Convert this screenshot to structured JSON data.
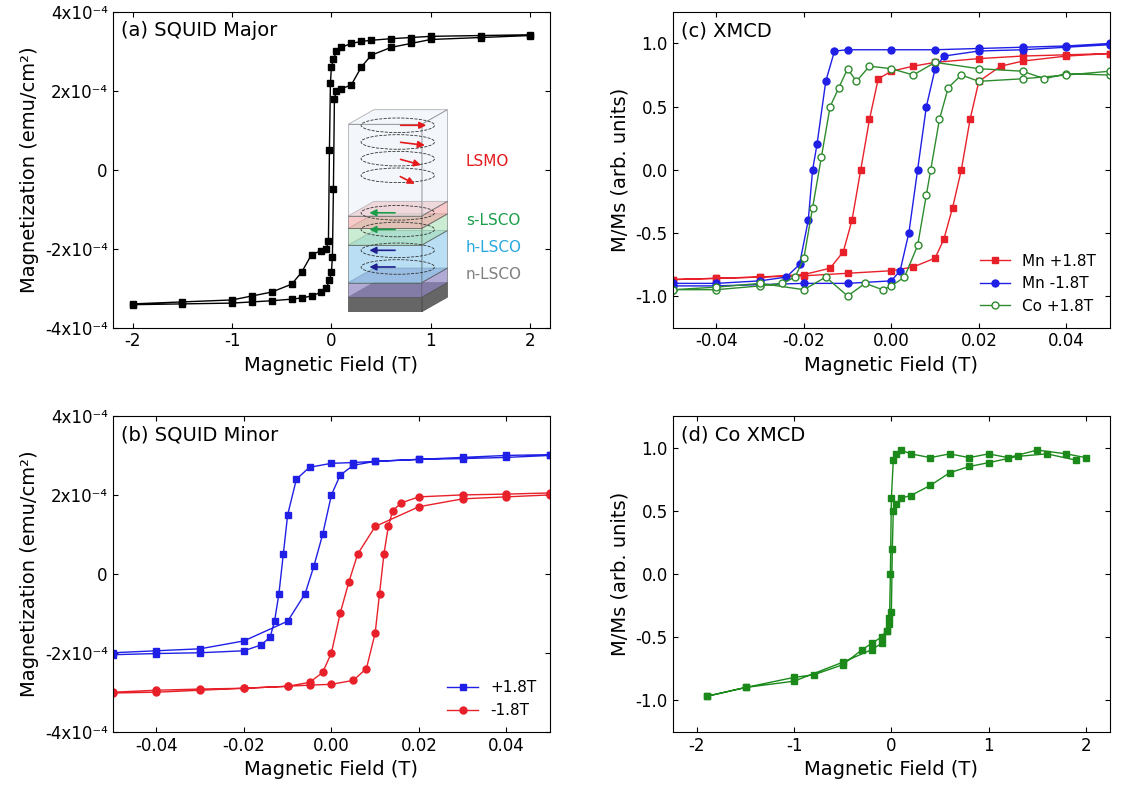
{
  "chart_data": [
    {
      "type": "line",
      "title": "(a) SQUID Major",
      "x_label": "Magnetic Field (T)",
      "y_label": "Magnetization (emu/cm²)",
      "xlim": [
        -2.2,
        2.2
      ],
      "ylim": [
        -0.0004,
        0.0004
      ],
      "xticks": [
        -2,
        -1,
        0,
        1,
        2
      ],
      "yticks": [
        {
          "value": -0.0004,
          "label": "-4x10⁻⁴"
        },
        {
          "value": -0.0002,
          "label": "-2x10⁻⁴"
        },
        0,
        {
          "value": 0.0002,
          "label": "2x10⁻⁴"
        },
        {
          "value": 0.0004,
          "label": "4x10⁻⁴"
        }
      ],
      "series": [
        {
          "color": "#000000",
          "marker": "square",
          "x": [
            2,
            1.5,
            1,
            0.8,
            0.6,
            0.4,
            0.3,
            0.2,
            0.1,
            0.05,
            0.02,
            0,
            -0.01,
            -0.02,
            -0.03,
            -0.05,
            -0.1,
            -0.2,
            -0.3,
            -0.4,
            -0.6,
            -0.8,
            -1,
            -1.5,
            -2,
            -2,
            -1.5,
            -1,
            -0.8,
            -0.6,
            -0.4,
            -0.3,
            -0.2,
            -0.1,
            -0.05,
            -0.02,
            0,
            0.01,
            0.02,
            0.03,
            0.05,
            0.1,
            0.2,
            0.3,
            0.4,
            0.6,
            0.8,
            1,
            1.5,
            2
          ],
          "values": [
            0.000342,
            0.00034,
            0.000338,
            0.000335,
            0.000332,
            0.000328,
            0.000325,
            0.00032,
            0.00031,
            0.0003,
            0.00028,
            0.00026,
            0.00022,
            5e-05,
            -0.00018,
            -0.0002,
            -0.000205,
            -0.000215,
            -0.00026,
            -0.00029,
            -0.00031,
            -0.00032,
            -0.00033,
            -0.000335,
            -0.00034,
            -0.000342,
            -0.00034,
            -0.000338,
            -0.000335,
            -0.000332,
            -0.000328,
            -0.000325,
            -0.00032,
            -0.00031,
            -0.0003,
            -0.00028,
            -0.00026,
            -0.00022,
            -5e-05,
            0.00018,
            0.0002,
            0.000205,
            0.000215,
            0.00026,
            0.00029,
            0.00031,
            0.00032,
            0.00033,
            0.000335,
            0.00034
          ]
        }
      ],
      "annotations": [
        {
          "text": "LSMO",
          "color": "#e41a1c"
        },
        {
          "text": "s-LSCO",
          "color": "#1b9e4b"
        },
        {
          "text": "h-LSCO",
          "color": "#29a8e0"
        },
        {
          "text": "n-LSCO",
          "color": "#7f7f7f"
        }
      ]
    },
    {
      "type": "line",
      "title": "(b) SQUID Minor",
      "x_label": "Magnetic Field (T)",
      "y_label": "Magnetization (emu/cm²)",
      "xlim": [
        -0.05,
        0.05
      ],
      "ylim": [
        -0.0004,
        0.0004
      ],
      "xticks": [
        {
          "value": -0.04,
          "label": "-0.04"
        },
        {
          "value": -0.02,
          "label": "-0.02"
        },
        {
          "value": 0,
          "label": "0.00"
        },
        {
          "value": 0.02,
          "label": "0.02"
        },
        {
          "value": 0.04,
          "label": "0.04"
        }
      ],
      "yticks": [
        {
          "value": -0.0004,
          "label": "-4x10⁻⁴"
        },
        {
          "value": -0.0002,
          "label": "-2x10⁻⁴"
        },
        0,
        {
          "value": 0.0002,
          "label": "2x10⁻⁴"
        },
        {
          "value": 0.0004,
          "label": "4x10⁻⁴"
        }
      ],
      "legend": "lower right",
      "series": [
        {
          "name": "+1.8T",
          "color": "#1f1fe6",
          "marker": "square",
          "x": [
            0.05,
            0.04,
            0.03,
            0.02,
            0.01,
            0.005,
            0,
            -0.005,
            -0.008,
            -0.01,
            -0.011,
            -0.012,
            -0.013,
            -0.014,
            -0.016,
            -0.02,
            -0.03,
            -0.04,
            -0.05,
            -0.05,
            -0.04,
            -0.03,
            -0.02,
            -0.01,
            -0.006,
            -0.004,
            -0.002,
            0,
            0.002,
            0.005,
            0.01,
            0.02,
            0.03,
            0.04,
            0.05
          ],
          "values": [
            0.0003,
            0.000295,
            0.000292,
            0.00029,
            0.000285,
            0.000282,
            0.00028,
            0.00027,
            0.00024,
            0.00015,
            5e-05,
            -5e-05,
            -0.00012,
            -0.00016,
            -0.00018,
            -0.000195,
            -0.0002,
            -0.000202,
            -0.000205,
            -0.0002,
            -0.000195,
            -0.00019,
            -0.00017,
            -0.00012,
            -5e-05,
            2e-05,
            0.0001,
            0.0002,
            0.00025,
            0.000275,
            0.000285,
            0.00029,
            0.000295,
            0.0003,
            0.000302
          ]
        },
        {
          "name": "-1.8T",
          "color": "#e8202a",
          "marker": "circle",
          "x": [
            0.05,
            0.04,
            0.03,
            0.02,
            0.01,
            0.006,
            0.004,
            0.002,
            0,
            -0.002,
            -0.005,
            -0.01,
            -0.02,
            -0.03,
            -0.04,
            -0.05,
            -0.05,
            -0.04,
            -0.03,
            -0.02,
            -0.01,
            -0.005,
            0,
            0.005,
            0.008,
            0.01,
            0.011,
            0.012,
            0.013,
            0.014,
            0.016,
            0.02,
            0.03,
            0.04,
            0.05
          ],
          "values": [
            0.0002,
            0.000195,
            0.00019,
            0.00017,
            0.00012,
            5e-05,
            -2e-05,
            -0.0001,
            -0.0002,
            -0.00025,
            -0.000275,
            -0.000285,
            -0.00029,
            -0.000295,
            -0.0003,
            -0.000302,
            -0.0003,
            -0.000295,
            -0.000292,
            -0.00029,
            -0.000285,
            -0.000282,
            -0.00028,
            -0.00027,
            -0.00024,
            -0.00015,
            -5e-05,
            5e-05,
            0.00012,
            0.00016,
            0.00018,
            0.000195,
            0.0002,
            0.000202,
            0.000205
          ]
        }
      ]
    },
    {
      "type": "line",
      "title": "(c) XMCD",
      "x_label": "Magnetic Field (T)",
      "y_label": "M/Ms (arb. units)",
      "xlim": [
        -0.05,
        0.05
      ],
      "ylim": [
        -1.25,
        1.25
      ],
      "xticks": [
        {
          "value": -0.04,
          "label": "-0.04"
        },
        {
          "value": -0.02,
          "label": "-0.02"
        },
        {
          "value": 0,
          "label": "0.00"
        },
        {
          "value": 0.02,
          "label": "0.02"
        },
        {
          "value": 0.04,
          "label": "0.04"
        }
      ],
      "yticks": [
        {
          "value": -1,
          "label": "-1.0"
        },
        {
          "value": -0.5,
          "label": "-0.5"
        },
        {
          "value": 0,
          "label": "0.0"
        },
        {
          "value": 0.5,
          "label": "0.5"
        },
        {
          "value": 1,
          "label": "1.0"
        }
      ],
      "legend": "lower right",
      "series": [
        {
          "name": "Mn +1.8T",
          "color": "#e8202a",
          "marker": "square",
          "x": [
            0.05,
            0.04,
            0.03,
            0.02,
            0.01,
            0.005,
            0,
            -0.003,
            -0.005,
            -0.007,
            -0.009,
            -0.011,
            -0.014,
            -0.02,
            -0.03,
            -0.04,
            -0.05,
            -0.05,
            -0.04,
            -0.03,
            -0.02,
            -0.01,
            0,
            0.005,
            0.01,
            0.012,
            0.014,
            0.016,
            0.018,
            0.02,
            0.025,
            0.03,
            0.04,
            0.05
          ],
          "values": [
            0.92,
            0.91,
            0.9,
            0.88,
            0.85,
            0.82,
            0.78,
            0.72,
            0.4,
            0.0,
            -0.4,
            -0.65,
            -0.78,
            -0.83,
            -0.85,
            -0.86,
            -0.87,
            -0.87,
            -0.86,
            -0.85,
            -0.84,
            -0.82,
            -0.8,
            -0.77,
            -0.7,
            -0.55,
            -0.3,
            0.0,
            0.4,
            0.7,
            0.82,
            0.86,
            0.9,
            0.92
          ]
        },
        {
          "name": "Mn -1.8T",
          "color": "#1f1fe6",
          "marker": "circle",
          "x": [
            0.05,
            0.04,
            0.03,
            0.02,
            0.01,
            0,
            -0.01,
            -0.013,
            -0.015,
            -0.017,
            -0.018,
            -0.019,
            -0.021,
            -0.024,
            -0.03,
            -0.04,
            -0.05,
            -0.05,
            -0.04,
            -0.03,
            -0.02,
            -0.01,
            0,
            0.002,
            0.004,
            0.006,
            0.008,
            0.01,
            0.012,
            0.02,
            0.03,
            0.04,
            0.05
          ],
          "values": [
            1.0,
            0.98,
            0.97,
            0.96,
            0.95,
            0.95,
            0.95,
            0.94,
            0.7,
            0.2,
            0.0,
            -0.4,
            -0.75,
            -0.85,
            -0.88,
            -0.9,
            -0.9,
            -0.92,
            -0.92,
            -0.91,
            -0.9,
            -0.9,
            -0.88,
            -0.8,
            -0.5,
            0.0,
            0.5,
            0.8,
            0.9,
            0.94,
            0.95,
            0.97,
            0.99
          ]
        },
        {
          "name": "Co +1.8T",
          "color": "#2e8b2e",
          "marker": "circle_open",
          "x": [
            0.05,
            0.04,
            0.035,
            0.03,
            0.02,
            0.01,
            0.005,
            0,
            -0.005,
            -0.008,
            -0.01,
            -0.012,
            -0.014,
            -0.016,
            -0.018,
            -0.02,
            -0.022,
            -0.025,
            -0.03,
            -0.04,
            -0.05,
            -0.05,
            -0.04,
            -0.03,
            -0.02,
            -0.015,
            -0.01,
            -0.006,
            -0.002,
            0,
            0.003,
            0.006,
            0.008,
            0.009,
            0.011,
            0.013,
            0.016,
            0.02,
            0.03,
            0.04,
            0.05
          ],
          "values": [
            0.75,
            0.76,
            0.72,
            0.78,
            0.8,
            0.85,
            0.75,
            0.8,
            0.82,
            0.7,
            0.8,
            0.65,
            0.5,
            0.1,
            -0.3,
            -0.7,
            -0.85,
            -0.9,
            -0.92,
            -0.95,
            -0.95,
            -0.95,
            -0.93,
            -0.9,
            -0.95,
            -0.85,
            -1.0,
            -0.9,
            -0.95,
            -0.92,
            -0.85,
            -0.6,
            -0.2,
            0.0,
            0.4,
            0.65,
            0.75,
            0.7,
            0.72,
            0.75,
            0.78
          ]
        }
      ]
    },
    {
      "type": "line",
      "title": "(d) Co XMCD",
      "x_label": "Magnetic Field (T)",
      "y_label": "M/Ms (arb. units)",
      "xlim": [
        -2.25,
        2.25
      ],
      "ylim": [
        -1.25,
        1.25
      ],
      "xticks": [
        -2,
        -1,
        0,
        1,
        2
      ],
      "yticks": [
        {
          "value": -1,
          "label": "-1.0"
        },
        {
          "value": -0.5,
          "label": "-0.5"
        },
        {
          "value": 0,
          "label": "0.0"
        },
        {
          "value": 0.5,
          "label": "0.5"
        },
        {
          "value": 1,
          "label": "1.0"
        }
      ],
      "series": [
        {
          "color": "#1b8a1b",
          "marker": "square",
          "x": [
            2,
            1.8,
            1.5,
            1.2,
            1,
            0.8,
            0.6,
            0.4,
            0.2,
            0.1,
            0.05,
            0.02,
            0,
            -0.01,
            -0.02,
            -0.05,
            -0.1,
            -0.2,
            -0.3,
            -0.5,
            -0.8,
            -1,
            -1.5,
            -1.9,
            -1.9,
            -1.5,
            -1,
            -0.5,
            -0.2,
            -0.1,
            -0.05,
            -0.02,
            0,
            0.01,
            0.02,
            0.05,
            0.1,
            0.2,
            0.4,
            0.6,
            0.8,
            1.0,
            1.3,
            1.6,
            1.9
          ],
          "values": [
            0.92,
            0.95,
            0.98,
            0.92,
            0.95,
            0.92,
            0.95,
            0.92,
            0.95,
            0.98,
            0.95,
            0.9,
            0.6,
            0.0,
            -0.4,
            -0.45,
            -0.5,
            -0.55,
            -0.6,
            -0.72,
            -0.8,
            -0.82,
            -0.9,
            -0.97,
            -0.97,
            -0.9,
            -0.85,
            -0.7,
            -0.6,
            -0.55,
            -0.45,
            -0.35,
            -0.3,
            0.2,
            0.5,
            0.55,
            0.6,
            0.62,
            0.7,
            0.8,
            0.85,
            0.88,
            0.93,
            0.95,
            0.9
          ]
        }
      ]
    }
  ]
}
